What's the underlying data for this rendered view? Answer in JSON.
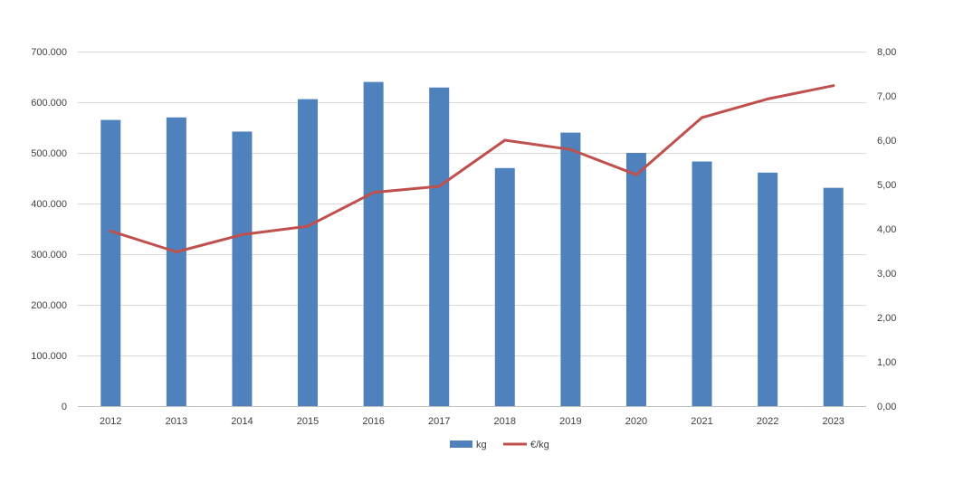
{
  "chart_data": {
    "type": "bar",
    "categories": [
      "2012",
      "2013",
      "2014",
      "2015",
      "2016",
      "2017",
      "2018",
      "2019",
      "2020",
      "2021",
      "2022",
      "2023"
    ],
    "series": [
      {
        "name": "kg",
        "type": "bar",
        "axis": "left",
        "color": "#4f81bd",
        "values": [
          565000,
          570000,
          542000,
          606000,
          640000,
          629000,
          470000,
          540000,
          500000,
          483000,
          461000,
          431000
        ]
      },
      {
        "name": "€/kg",
        "type": "line",
        "axis": "right",
        "color": "#c0504d",
        "values": [
          3.95,
          3.48,
          3.87,
          4.06,
          4.82,
          4.96,
          6.0,
          5.79,
          5.22,
          6.51,
          6.93,
          7.23
        ]
      }
    ],
    "y_left": {
      "ylim": [
        0,
        700000
      ],
      "ticks": [
        "0",
        "100.000",
        "200.000",
        "300.000",
        "400.000",
        "500.000",
        "600.000",
        "700.000"
      ]
    },
    "y_right": {
      "ylim": [
        0,
        8
      ],
      "ticks": [
        "0,00",
        "1,00",
        "2,00",
        "3,00",
        "4,00",
        "5,00",
        "6,00",
        "7,00",
        "8,00"
      ]
    },
    "grid": true,
    "legend": "bottom-center"
  }
}
